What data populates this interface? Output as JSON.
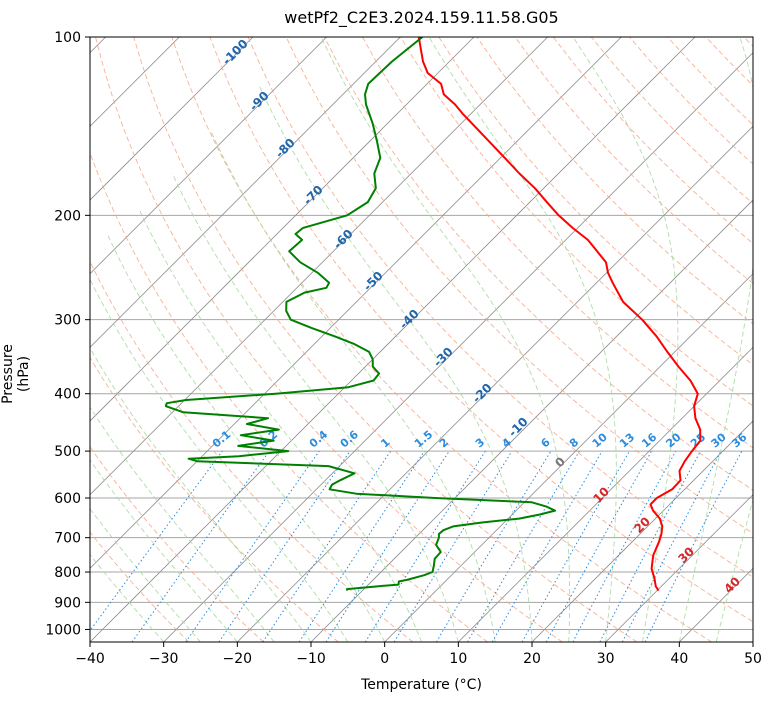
{
  "chart_data": {
    "type": "line",
    "title": "wetPf2_C2E3.2024.159.11.58.G05",
    "xlabel": "Temperature (°C)",
    "ylabel": "Pressure (hPa)",
    "xlim": [
      -40,
      50
    ],
    "ylim": [
      1050,
      100
    ],
    "y_scale": "log",
    "x_ticks": [
      -40,
      -30,
      -20,
      -10,
      0,
      10,
      20,
      30,
      40,
      50
    ],
    "y_ticks": [
      100,
      200,
      300,
      400,
      500,
      600,
      700,
      800,
      900,
      1000
    ],
    "grid": true,
    "skew_t": true,
    "series": [
      {
        "role": "temperature",
        "color": "#ff0000",
        "p": [
          860,
          845,
          820,
          790,
          750,
          710,
          690,
          670,
          650,
          630,
          615,
          600,
          580,
          560,
          540,
          520,
          500,
          480,
          460,
          440,
          420,
          400,
          380,
          360,
          340,
          320,
          300,
          280,
          260,
          250,
          240,
          230,
          220,
          210,
          200,
          190,
          180,
          170,
          160,
          150,
          140,
          135,
          130,
          125,
          120,
          115,
          110,
          105,
          100
        ],
        "t": [
          30.2,
          29.2,
          28.0,
          26.3,
          24.7,
          23.6,
          22.9,
          22.0,
          20.6,
          18.6,
          17.4,
          17.4,
          18.3,
          18.2,
          16.8,
          16.2,
          15.8,
          15.5,
          14.0,
          11.8,
          10.0,
          8.8,
          6.0,
          2.5,
          -1.0,
          -4.6,
          -8.8,
          -13.8,
          -17.8,
          -19.8,
          -21.5,
          -24.2,
          -27.0,
          -30.7,
          -34.3,
          -37.7,
          -41.2,
          -45.3,
          -49.4,
          -53.8,
          -58.5,
          -61.0,
          -63.4,
          -66.3,
          -68.1,
          -71.4,
          -73.6,
          -75.5,
          -77.5
        ]
      },
      {
        "role": "dewpoint",
        "color": "#008000",
        "p": [
          860,
          855,
          845,
          840,
          830,
          825,
          810,
          800,
          780,
          760,
          740,
          720,
          700,
          690,
          680,
          670,
          660,
          650,
          640,
          630,
          620,
          610,
          600,
          590,
          580,
          570,
          560,
          545,
          530,
          520,
          515,
          510,
          500,
          490,
          480,
          470,
          460,
          450,
          440,
          430,
          420,
          415,
          410,
          400,
          390,
          380,
          370,
          360,
          350,
          340,
          330,
          320,
          310,
          300,
          290,
          280,
          270,
          265,
          260,
          250,
          240,
          235,
          230,
          220,
          215,
          210,
          200,
          190,
          180,
          170,
          160,
          150,
          140,
          130,
          125,
          120,
          110,
          100
        ],
        "t": [
          -12.0,
          -12.3,
          -8.2,
          -5.9,
          -6.3,
          -5.4,
          -3.7,
          -3.0,
          -3.7,
          -4.5,
          -4.6,
          -6.2,
          -6.8,
          -7.3,
          -7.2,
          -6.4,
          -3.0,
          1.5,
          3.7,
          5.3,
          3.5,
          1.0,
          -12.7,
          -24.0,
          -28.2,
          -28.5,
          -28.0,
          -27.0,
          -31.5,
          -50.0,
          -51.5,
          -45.0,
          -39.0,
          -46.5,
          -42.4,
          -47.6,
          -43.2,
          -48.3,
          -46.2,
          -58.5,
          -61.7,
          -62.0,
          -59.8,
          -48.5,
          -39.5,
          -37.0,
          -37.2,
          -39.0,
          -40.0,
          -41.5,
          -44.5,
          -48.3,
          -52.5,
          -56.5,
          -58.3,
          -59.5,
          -58.3,
          -56.0,
          -56.3,
          -59.2,
          -63.0,
          -64.5,
          -66.0,
          -65.8,
          -67.5,
          -67.3,
          -63.0,
          -62.0,
          -62.8,
          -65.0,
          -66.3,
          -69.0,
          -72.0,
          -75.5,
          -77.0,
          -78.0,
          -77.8,
          -77.0
        ]
      }
    ],
    "dry_adiabat_labels": [
      "-100",
      "-90",
      "-80",
      "-70",
      "-60",
      "-50",
      "-40",
      "-30",
      "-20",
      "-10",
      "0",
      "10",
      "20",
      "30",
      "40"
    ],
    "mixing_ratio_labels": [
      "0.1",
      "0.2",
      "0.4",
      "0.6",
      "1",
      "1.5",
      "2",
      "3",
      "4",
      "6",
      "8",
      "10",
      "13",
      "16",
      "20",
      "25",
      "30",
      "36"
    ],
    "colors": {
      "temperature": "#ff0000",
      "dewpoint": "#008000",
      "isotherm": "#8c8c8c",
      "isobar": "#a6a6a6",
      "dry_adiabat": "#f4a582",
      "moist_adiabat": "#a6d8a0",
      "mixing_ratio": "#2b8cde",
      "dry_label": "#2166ac",
      "hot_label": "#d62728",
      "zero_label": "#777777"
    }
  }
}
